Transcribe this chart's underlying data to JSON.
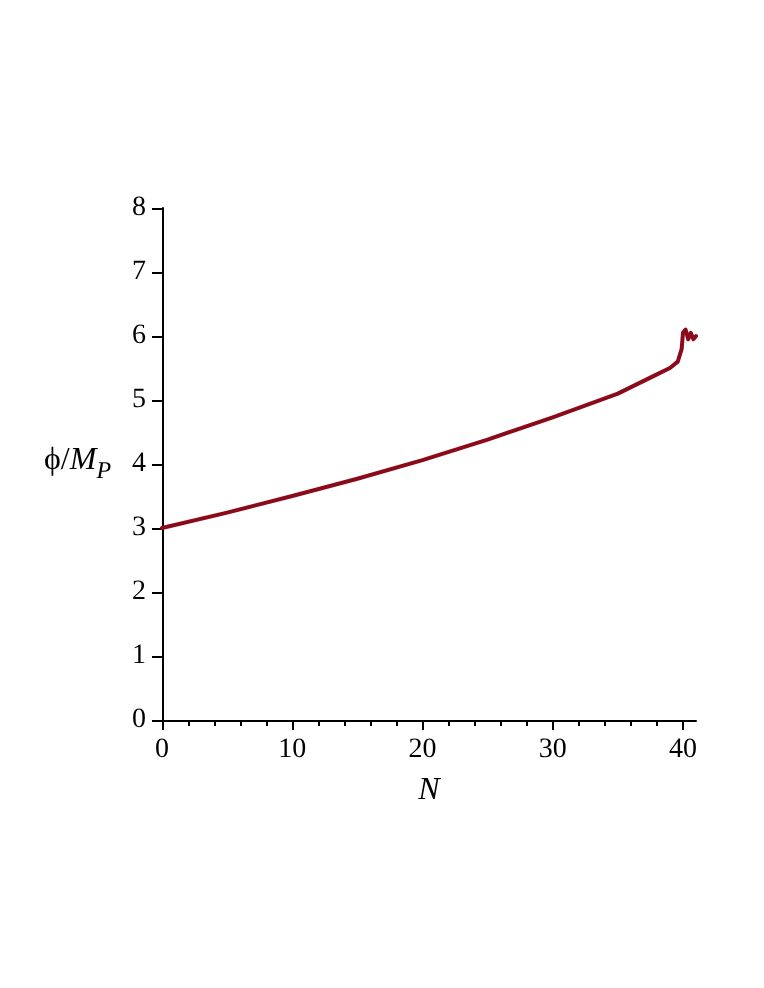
{
  "chart_data": {
    "type": "line",
    "xlabel": "N",
    "ylabel": "ϕ/M$_{P}$",
    "x": [
      0,
      5,
      10,
      15,
      20,
      25,
      30,
      35,
      38,
      39,
      39.6,
      39.9,
      40,
      40.2,
      40.4,
      40.6,
      40.8,
      41
    ],
    "series": [
      {
        "color": "#8b0a1a",
        "values": [
          3.0,
          3.24,
          3.5,
          3.77,
          4.06,
          4.38,
          4.73,
          5.1,
          5.4,
          5.5,
          5.6,
          5.8,
          6.05,
          6.1,
          5.95,
          6.05,
          5.95,
          6.0
        ]
      }
    ],
    "xlim": [
      0,
      41
    ],
    "xticks": [
      0,
      10,
      20,
      30,
      40
    ],
    "ylim": [
      0,
      8
    ],
    "yticks": [
      0,
      1,
      2,
      3,
      4,
      5,
      6,
      7,
      8
    ],
    "grid": false,
    "marker": "none",
    "line_style": "solid"
  }
}
